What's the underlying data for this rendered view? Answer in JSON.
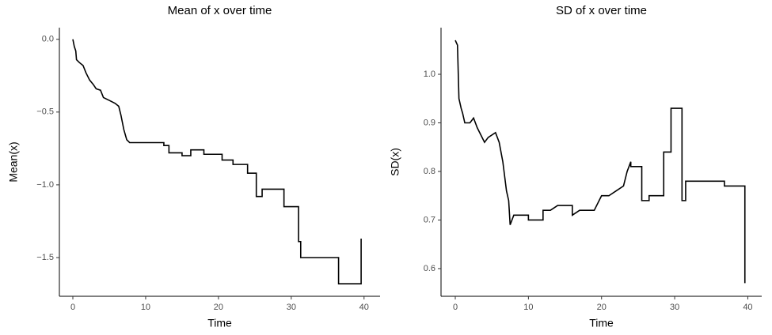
{
  "chart_data": [
    {
      "type": "line",
      "title": "Mean of x over time",
      "xlabel": "Time",
      "ylabel": "Mean(x)",
      "color": "#000000",
      "xlim": [
        -1.85,
        42.2
      ],
      "ylim": [
        -1.766,
        0.08
      ],
      "xticks": [
        0,
        10,
        20,
        30,
        40
      ],
      "yticks": [
        {
          "value": -1.5,
          "label": "−1.5"
        },
        {
          "value": -1.0,
          "label": "−1.0"
        },
        {
          "value": -0.5,
          "label": "−0.5"
        },
        {
          "value": 0.0,
          "label": "0.0"
        }
      ],
      "x": [
        0,
        0.2,
        0.4,
        0.5,
        0.9,
        1.4,
        1.8,
        2.3,
        2.8,
        3.2,
        3.8,
        4.2,
        5,
        5.8,
        6.3,
        6.6,
        7,
        7.4,
        7.8,
        12.5,
        12.5,
        13.2,
        13.2,
        15,
        15,
        16.2,
        16.2,
        18,
        18,
        20.5,
        20.5,
        22,
        22,
        24,
        24,
        25.2,
        25.2,
        26,
        26,
        29,
        29,
        31,
        31,
        31.3,
        31.3,
        36.5,
        36.5,
        39.6,
        39.6
      ],
      "y": [
        0,
        -0.05,
        -0.08,
        -0.14,
        -0.16,
        -0.18,
        -0.23,
        -0.28,
        -0.31,
        -0.34,
        -0.35,
        -0.4,
        -0.42,
        -0.44,
        -0.46,
        -0.52,
        -0.62,
        -0.69,
        -0.71,
        -0.71,
        -0.73,
        -0.73,
        -0.78,
        -0.78,
        -0.8,
        -0.8,
        -0.76,
        -0.76,
        -0.79,
        -0.79,
        -0.83,
        -0.83,
        -0.86,
        -0.86,
        -0.92,
        -0.92,
        -1.08,
        -1.08,
        -1.03,
        -1.03,
        -1.15,
        -1.15,
        -1.39,
        -1.39,
        -1.5,
        -1.5,
        -1.68,
        -1.68,
        -1.37
      ]
    },
    {
      "type": "line",
      "title": "SD of x over time",
      "xlabel": "Time",
      "ylabel": "SD(x)",
      "color": "#000000",
      "xlim": [
        -1.95,
        41.9
      ],
      "ylim": [
        0.543,
        1.096
      ],
      "xticks": [
        0,
        10,
        20,
        30,
        40
      ],
      "yticks": [
        0.6,
        0.7,
        0.8,
        0.9,
        {
          "value": 1.0,
          "label": "1.0"
        }
      ],
      "x": [
        0,
        0.3,
        0.5,
        0.8,
        1,
        1.3,
        2,
        2.5,
        3,
        4,
        4.5,
        5.5,
        6,
        6.5,
        7,
        7.3,
        7.5,
        8,
        10,
        10,
        12,
        12,
        13,
        14,
        16,
        16,
        17,
        19,
        20,
        21,
        22,
        23,
        23.5,
        24,
        24,
        25.5,
        25.5,
        26.5,
        26.5,
        28.5,
        28.5,
        29.5,
        29.5,
        31,
        31,
        31.5,
        31.5,
        36.8,
        36.8,
        39.6,
        39.6
      ],
      "y": [
        1.07,
        1.06,
        0.95,
        0.93,
        0.92,
        0.9,
        0.9,
        0.91,
        0.89,
        0.86,
        0.87,
        0.88,
        0.86,
        0.82,
        0.76,
        0.74,
        0.69,
        0.71,
        0.71,
        0.7,
        0.7,
        0.72,
        0.72,
        0.73,
        0.73,
        0.71,
        0.72,
        0.72,
        0.75,
        0.75,
        0.76,
        0.77,
        0.8,
        0.82,
        0.81,
        0.81,
        0.74,
        0.74,
        0.75,
        0.75,
        0.84,
        0.84,
        0.93,
        0.93,
        0.74,
        0.74,
        0.78,
        0.78,
        0.77,
        0.77,
        0.57
      ]
    }
  ]
}
